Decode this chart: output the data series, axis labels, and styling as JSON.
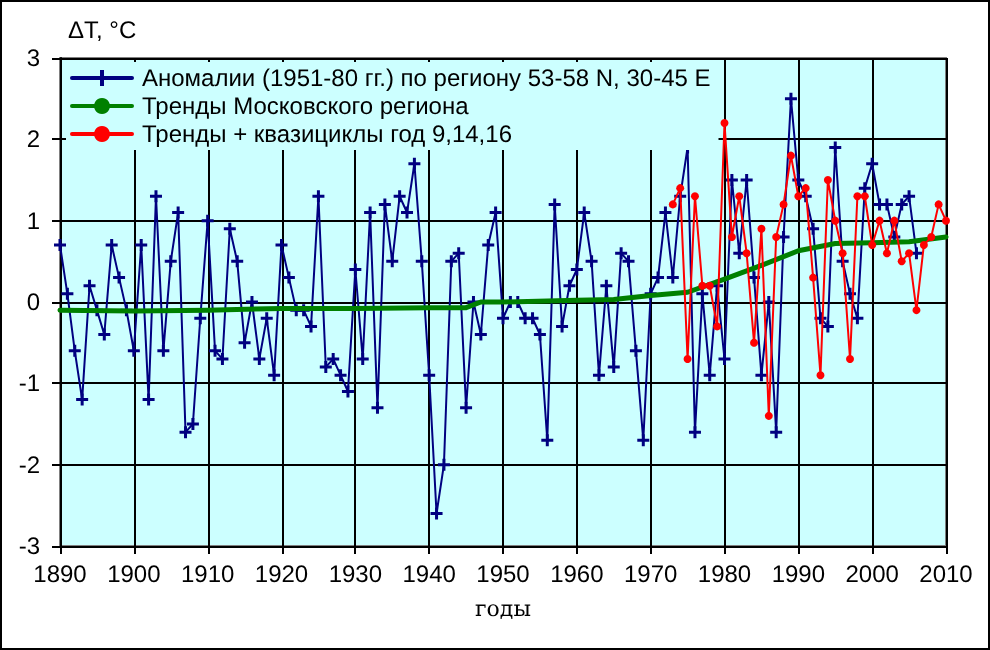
{
  "chart_data": {
    "type": "line",
    "xlabel": "годы",
    "ylabel": "ΔT, °C",
    "xlim": [
      1890,
      2010
    ],
    "xticks": [
      1890,
      1900,
      1910,
      1920,
      1930,
      1940,
      1950,
      1960,
      1970,
      1980,
      1990,
      2000,
      2010
    ],
    "ylim": [
      -3,
      3
    ],
    "yticks": [
      -3,
      -2,
      -1,
      0,
      1,
      2,
      3
    ],
    "grid": true,
    "legend": "top left",
    "line_style": "solid",
    "series": [
      {
        "name": "Аномалии (1951-80 гг.) по региону 53-58 N, 30-45 E",
        "color": "#000080",
        "marker": "cross",
        "x": [
          1890,
          1891,
          1892,
          1893,
          1894,
          1895,
          1896,
          1897,
          1898,
          1899,
          1900,
          1901,
          1902,
          1903,
          1904,
          1905,
          1906,
          1907,
          1908,
          1909,
          1910,
          1911,
          1912,
          1913,
          1914,
          1915,
          1916,
          1917,
          1918,
          1919,
          1920,
          1921,
          1922,
          1923,
          1924,
          1925,
          1926,
          1927,
          1928,
          1929,
          1930,
          1931,
          1932,
          1933,
          1934,
          1935,
          1936,
          1937,
          1938,
          1939,
          1940,
          1941,
          1942,
          1943,
          1944,
          1945,
          1946,
          1947,
          1948,
          1949,
          1950,
          1951,
          1952,
          1953,
          1954,
          1955,
          1956,
          1957,
          1958,
          1959,
          1960,
          1961,
          1962,
          1963,
          1964,
          1965,
          1966,
          1967,
          1968,
          1969,
          1970,
          1971,
          1972,
          1973,
          1974,
          1975,
          1976,
          1977,
          1978,
          1979,
          1980,
          1981,
          1982,
          1983,
          1984,
          1985,
          1986,
          1987,
          1988,
          1989,
          1990,
          1991,
          1992,
          1993,
          1994,
          1995,
          1996,
          1997,
          1998,
          1999,
          2000,
          2001,
          2002,
          2003,
          2004,
          2005,
          2006
        ],
        "values": [
          0.7,
          0.1,
          -0.6,
          -1.2,
          0.2,
          -0.1,
          -0.4,
          0.7,
          0.3,
          -0.1,
          -0.6,
          0.7,
          -1.2,
          1.3,
          -0.6,
          0.5,
          1.1,
          -1.6,
          -1.5,
          -0.2,
          1.0,
          -0.6,
          -0.7,
          0.9,
          0.5,
          -0.5,
          0.0,
          -0.7,
          -0.2,
          -0.9,
          0.7,
          0.3,
          -0.1,
          -0.1,
          -0.3,
          1.3,
          -0.8,
          -0.7,
          -0.9,
          -1.1,
          0.4,
          -0.7,
          1.1,
          -1.3,
          1.2,
          0.5,
          1.3,
          1.1,
          1.7,
          0.5,
          -0.9,
          -2.6,
          -2.0,
          0.5,
          0.6,
          -1.3,
          0.0,
          -0.4,
          0.7,
          1.1,
          -0.2,
          0.0,
          0.0,
          -0.2,
          -0.2,
          -0.4,
          -1.7,
          1.2,
          -0.3,
          0.2,
          0.4,
          1.1,
          0.5,
          -0.9,
          0.2,
          -0.8,
          0.6,
          0.5,
          -0.6,
          -1.7,
          0.1,
          0.3,
          1.1,
          0.3,
          1.3,
          1.9,
          -1.6,
          0.1,
          -0.9,
          0.2,
          -0.7,
          1.5,
          0.6,
          1.5,
          0.3,
          -0.9,
          0.0,
          -1.6,
          0.8,
          2.5,
          1.5,
          1.3,
          0.9,
          -0.2,
          -0.3,
          1.9,
          0.5,
          0.1,
          -0.2,
          1.4,
          1.7,
          1.2,
          1.2,
          0.8,
          1.2,
          1.3,
          0.6
        ]
      },
      {
        "name": "Тренды Московского региона",
        "color": "#008000",
        "marker": "none",
        "x": [
          1890,
          1900,
          1910,
          1920,
          1930,
          1940,
          1945,
          1947,
          1950,
          1960,
          1965,
          1970,
          1975,
          1980,
          1985,
          1990,
          1995,
          2000,
          2005,
          2010
        ],
        "values": [
          -0.1,
          -0.11,
          -0.1,
          -0.08,
          -0.08,
          -0.07,
          -0.07,
          0.0,
          0.0,
          0.02,
          0.03,
          0.08,
          0.12,
          0.28,
          0.45,
          0.63,
          0.72,
          0.73,
          0.74,
          0.8
        ]
      },
      {
        "name": "Тренды + квазициклы год 9,14,16",
        "color": "#ff0000",
        "marker": "circle",
        "x": [
          1973,
          1974,
          1975,
          1976,
          1977,
          1978,
          1979,
          1980,
          1981,
          1982,
          1983,
          1984,
          1985,
          1986,
          1987,
          1988,
          1989,
          1990,
          1991,
          1992,
          1993,
          1994,
          1995,
          1996,
          1997,
          1998,
          1999,
          2000,
          2001,
          2002,
          2003,
          2004,
          2005,
          2006,
          2007,
          2008,
          2009,
          2010
        ],
        "values": [
          1.2,
          1.4,
          -0.7,
          1.3,
          0.2,
          0.2,
          -0.3,
          2.2,
          0.8,
          1.3,
          0.6,
          -0.5,
          0.9,
          -1.4,
          0.8,
          1.2,
          1.8,
          1.3,
          1.4,
          0.3,
          -0.9,
          1.5,
          1.0,
          0.6,
          -0.7,
          1.3,
          1.3,
          0.7,
          1.0,
          0.6,
          1.0,
          0.5,
          0.6,
          -0.1,
          0.7,
          0.8,
          1.2,
          1.0
        ]
      }
    ]
  }
}
